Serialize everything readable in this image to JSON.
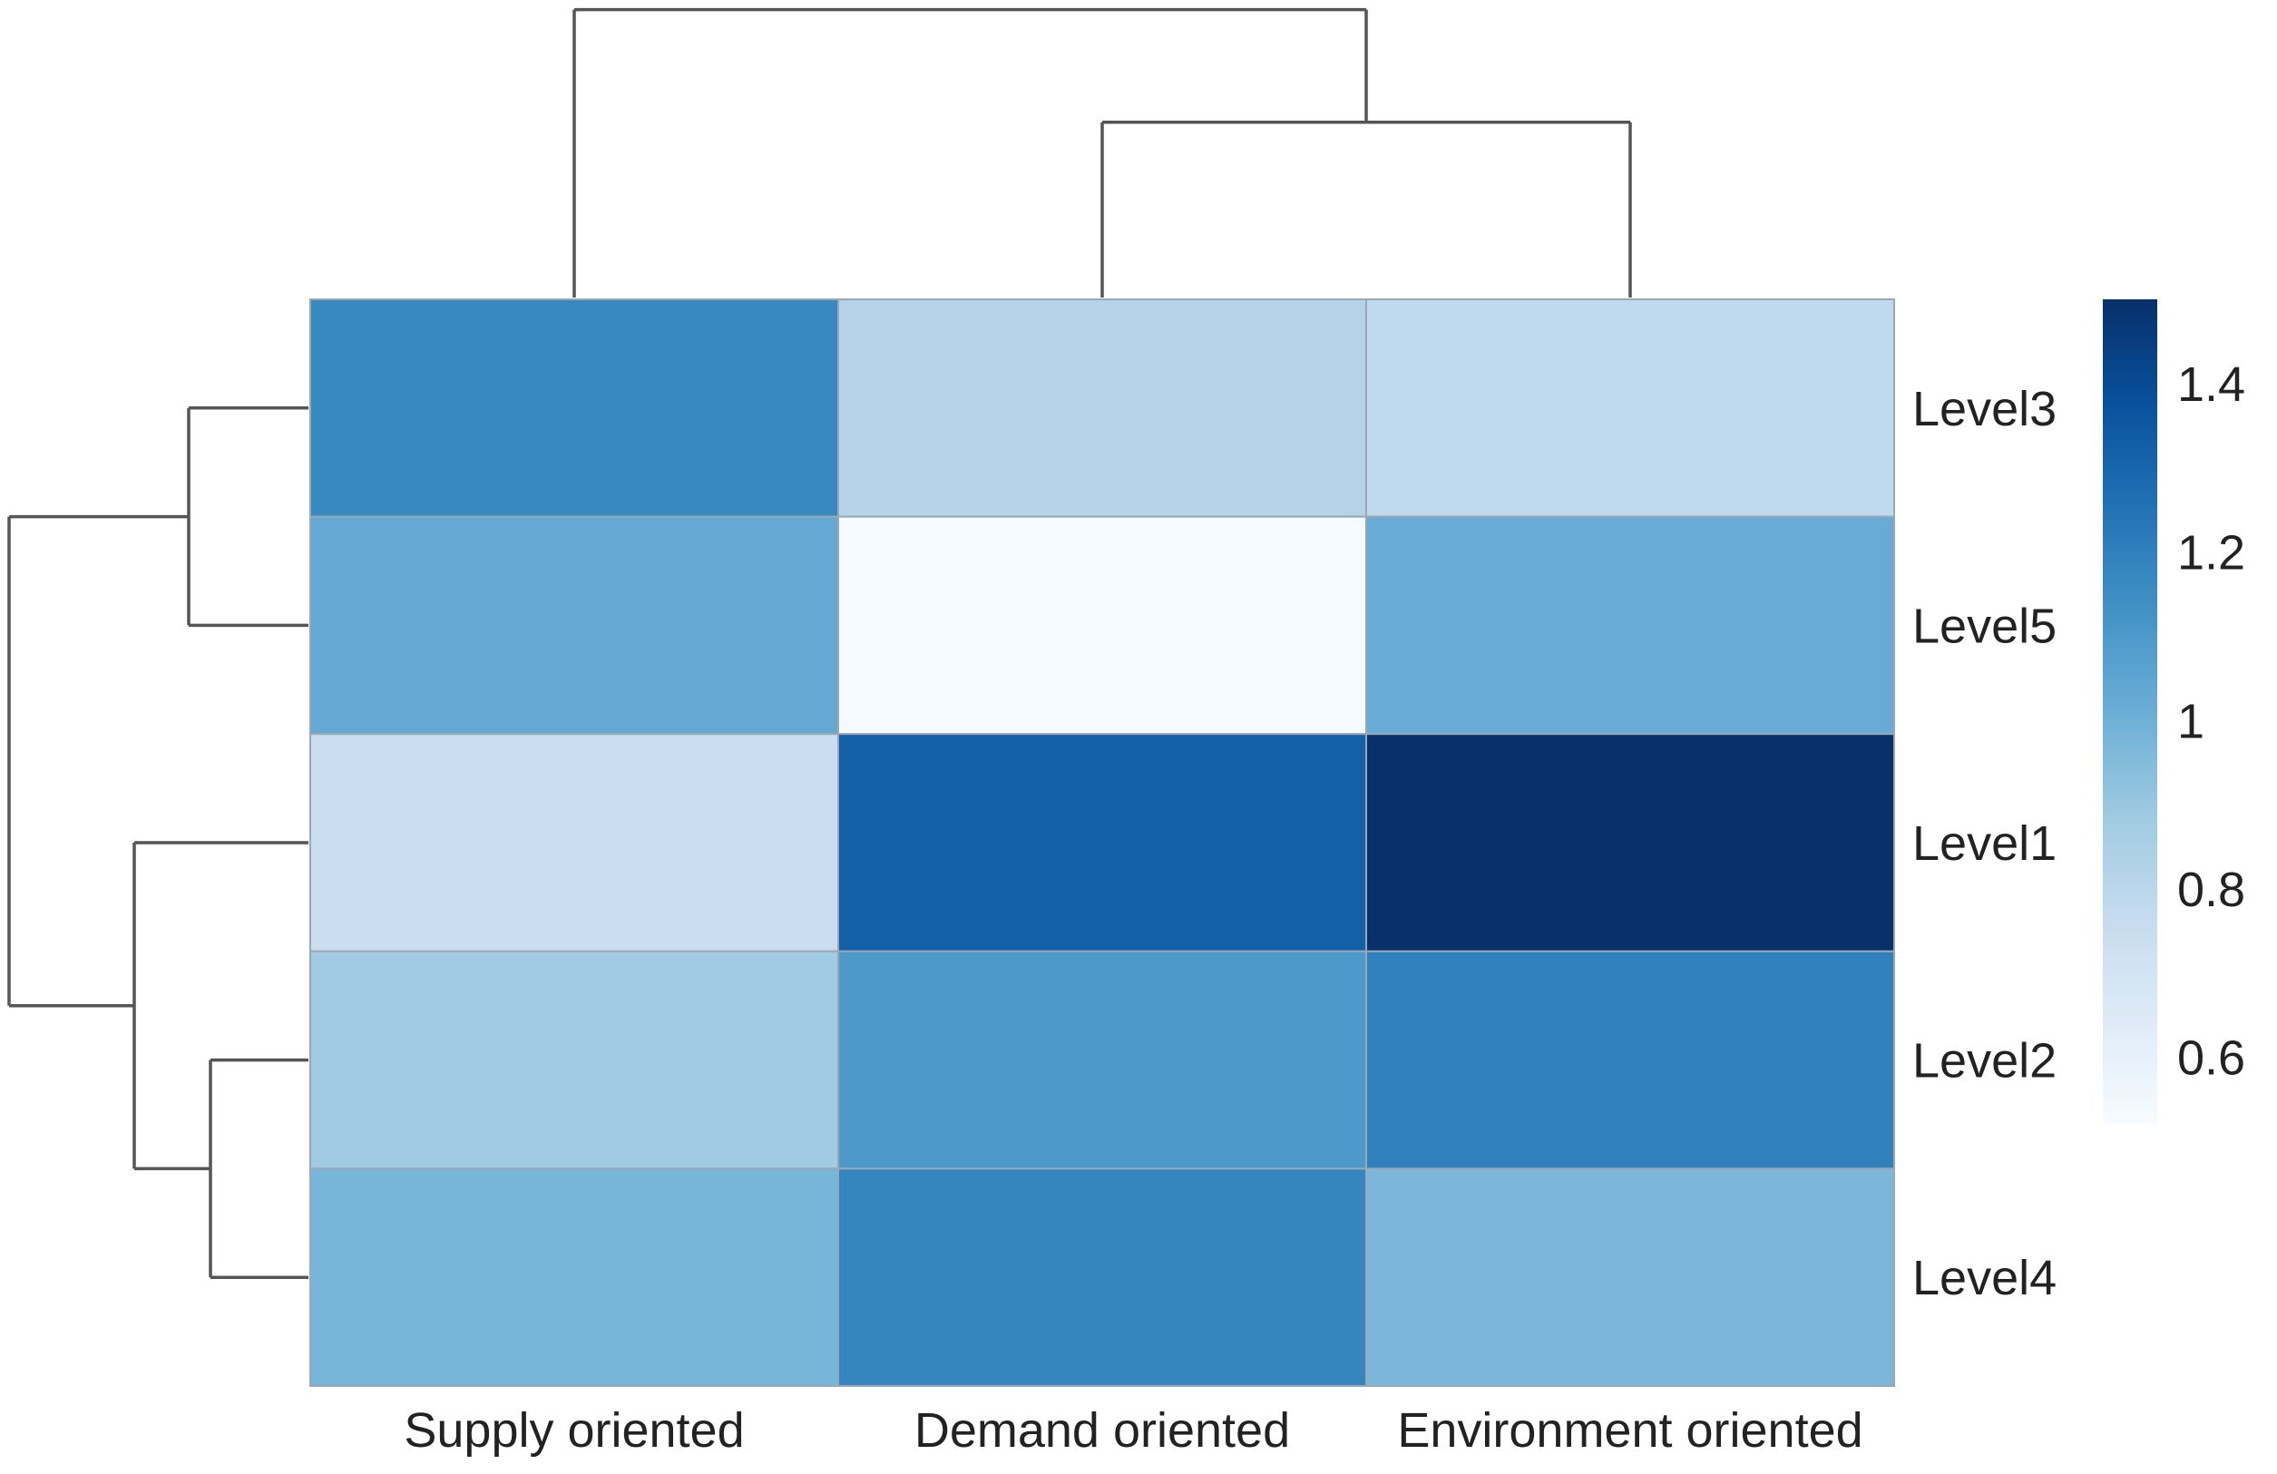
{
  "chart_data": {
    "type": "heatmap",
    "title": "",
    "columns": [
      "Supply oriented",
      "Demand oriented",
      "Environment oriented"
    ],
    "rows": [
      "Level3",
      "Level5",
      "Level1",
      "Level2",
      "Level4"
    ],
    "values": [
      [
        1.17,
        0.82,
        0.78
      ],
      [
        1.03,
        0.53,
        1.02
      ],
      [
        0.74,
        1.32,
        1.5
      ],
      [
        0.88,
        1.1,
        1.2
      ],
      [
        0.98,
        1.18,
        0.97
      ]
    ],
    "colorbar": {
      "min": 0.52,
      "max": 1.5,
      "ticks": [
        0.6,
        0.8,
        1,
        1.2,
        1.4
      ],
      "tick_labels": [
        "0.6",
        "0.8",
        "1",
        "1.2",
        "1.4"
      ],
      "low_color": "#f7fbff",
      "high_color": "#08306b"
    },
    "row_dendrogram": {
      "merges": [
        {
          "members": [
            "Level3",
            "Level5"
          ],
          "height": 0.22
        },
        {
          "members": [
            "Level2",
            "Level4"
          ],
          "height": 0.18
        },
        {
          "members": [
            "Level1",
            "Level2",
            "Level4"
          ],
          "height": 0.32
        },
        {
          "members": [
            "Level3",
            "Level5",
            "Level1",
            "Level2",
            "Level4"
          ],
          "height": 0.55
        }
      ]
    },
    "column_dendrogram": {
      "merges": [
        {
          "members": [
            "Demand oriented",
            "Environment oriented"
          ],
          "height": 0.42
        },
        {
          "members": [
            "Supply oriented",
            "Demand oriented",
            "Environment oriented"
          ],
          "height": 0.69
        }
      ]
    }
  }
}
